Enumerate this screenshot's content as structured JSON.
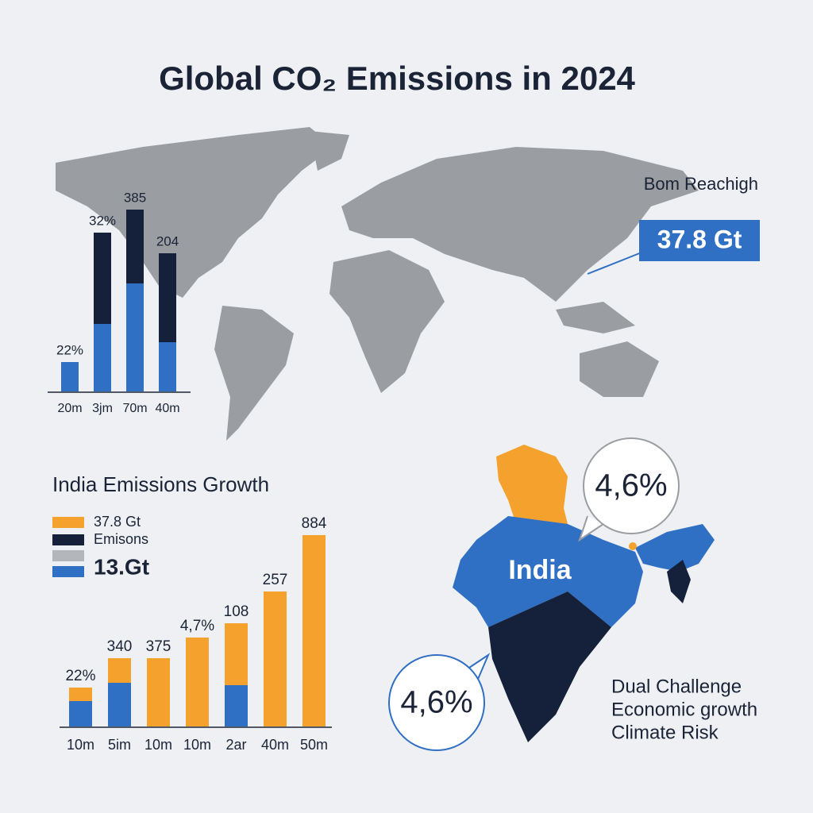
{
  "title": "Global CO₂ Emissions in 2024",
  "map_callout": {
    "label": "Bom Reachigh",
    "value": "37.8 Gt"
  },
  "india": {
    "label": "India",
    "bubble_top": "4,6%",
    "bubble_bottom": "4,6%",
    "notes": [
      "Dual Challenge",
      "Economic growth",
      "Climate Risk"
    ]
  },
  "chart_data": [
    {
      "type": "bar",
      "stacked": true,
      "categories": [
        "20m",
        "3jm",
        "70m",
        "40m"
      ],
      "series": [
        {
          "color": "#2f6fc4",
          "values": [
            37,
            85,
            136,
            62
          ]
        },
        {
          "color": "#15213a",
          "values": [
            0,
            115,
            93,
            112
          ]
        }
      ],
      "annotations": [
        "22%",
        "32%",
        "385",
        "204"
      ],
      "ylim": [
        0,
        250
      ]
    },
    {
      "type": "bar",
      "stacked": true,
      "title": "India Emissions Growth",
      "categories": [
        "10m",
        "5im",
        "10m",
        "10m",
        "2ar",
        "40m",
        "50m"
      ],
      "series": [
        {
          "name": "13.Gt",
          "color": "#2f6fc4",
          "values": [
            32,
            55,
            0,
            0,
            52,
            0,
            0
          ]
        },
        {
          "name": "37.8 Gt",
          "color": "#f4a12e",
          "values": [
            17,
            31,
            86,
            112,
            78,
            170,
            241
          ]
        }
      ],
      "legend_extra": [
        {
          "name": "Emisons",
          "color": "#15213a"
        },
        {
          "color": "#b3b6bb"
        }
      ],
      "annotations": [
        "22%",
        "340",
        "375",
        "4,7%",
        "108",
        "257",
        "884"
      ],
      "ylim": [
        0,
        250
      ]
    }
  ]
}
